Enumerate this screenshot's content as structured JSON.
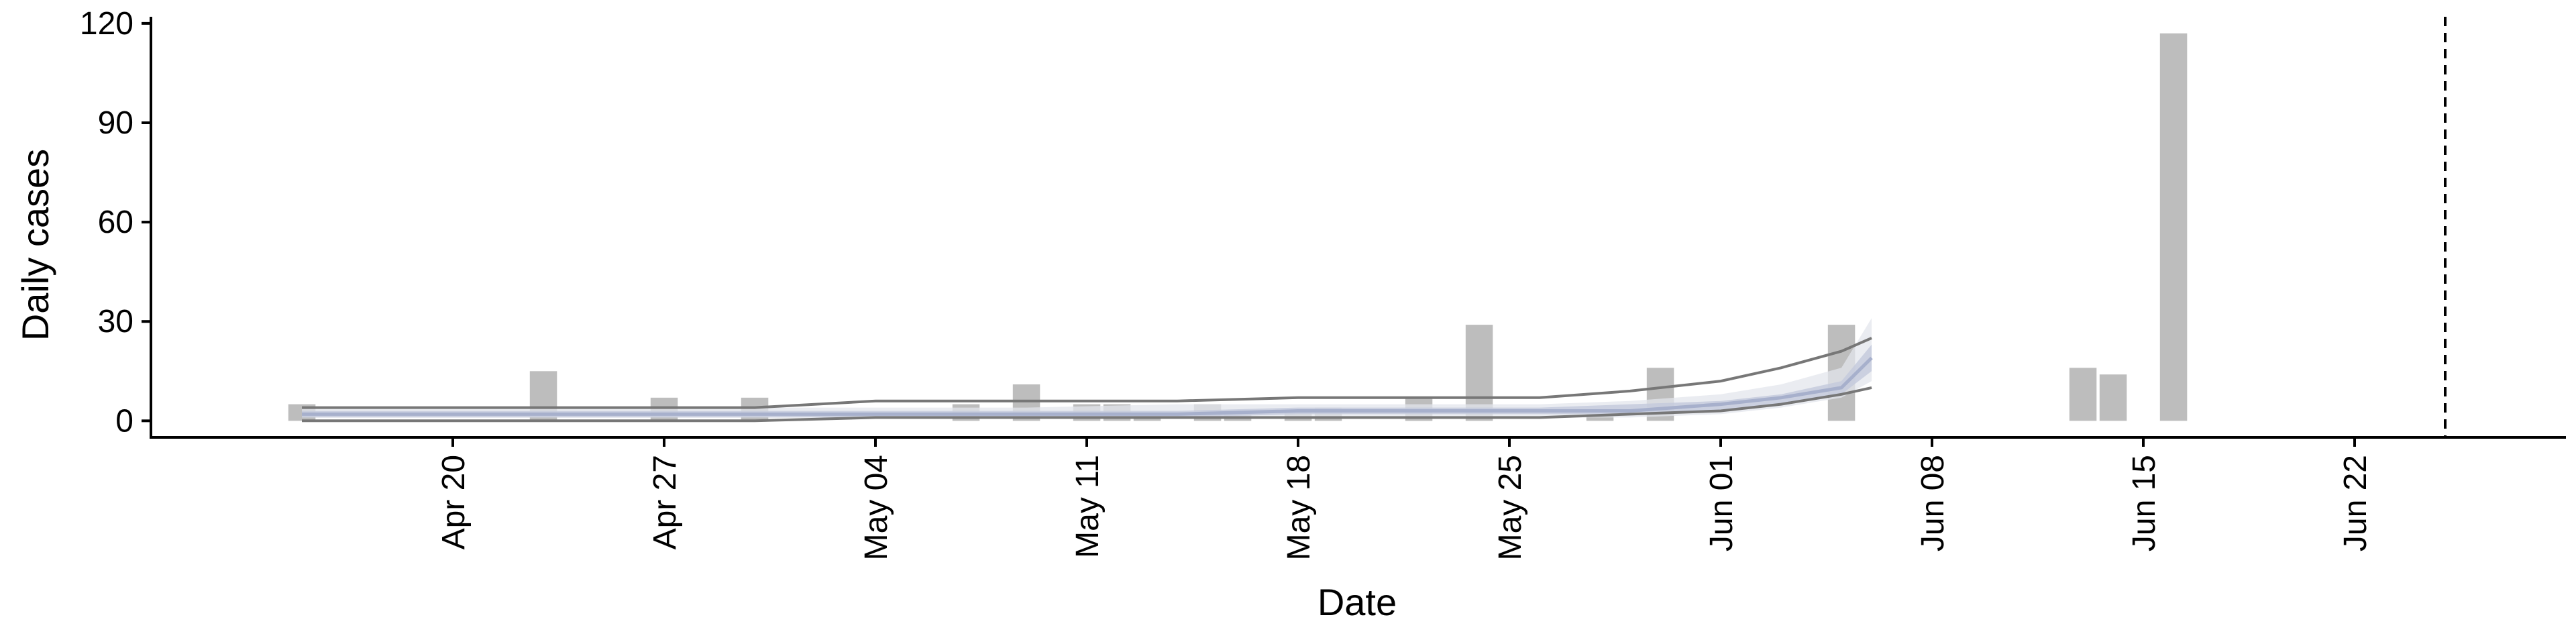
{
  "chart_data": {
    "type": "bar",
    "title": "",
    "xlabel": "Date",
    "ylabel": "Daily cases",
    "ylim": [
      -5,
      122
    ],
    "yticks": [
      0,
      30,
      60,
      90,
      120
    ],
    "xlim": [
      "2020-04-10",
      "2020-06-29"
    ],
    "xticks": [
      {
        "date": "2020-04-20",
        "label": "Apr 20"
      },
      {
        "date": "2020-04-27",
        "label": "Apr 27"
      },
      {
        "date": "2020-05-04",
        "label": "May 04"
      },
      {
        "date": "2020-05-11",
        "label": "May 11"
      },
      {
        "date": "2020-05-18",
        "label": "May 18"
      },
      {
        "date": "2020-05-25",
        "label": "May 25"
      },
      {
        "date": "2020-06-01",
        "label": "Jun 01"
      },
      {
        "date": "2020-06-08",
        "label": "Jun 08"
      },
      {
        "date": "2020-06-15",
        "label": "Jun 15"
      },
      {
        "date": "2020-06-22",
        "label": "Jun 22"
      }
    ],
    "bars": [
      {
        "date": "2020-04-15",
        "value": 5
      },
      {
        "date": "2020-04-23",
        "value": 15
      },
      {
        "date": "2020-04-27",
        "value": 7
      },
      {
        "date": "2020-04-30",
        "value": 7
      },
      {
        "date": "2020-05-07",
        "value": 5
      },
      {
        "date": "2020-05-09",
        "value": 11
      },
      {
        "date": "2020-05-11",
        "value": 5
      },
      {
        "date": "2020-05-12",
        "value": 5
      },
      {
        "date": "2020-05-13",
        "value": 2
      },
      {
        "date": "2020-05-15",
        "value": 5
      },
      {
        "date": "2020-05-16",
        "value": 3
      },
      {
        "date": "2020-05-18",
        "value": 3
      },
      {
        "date": "2020-05-19",
        "value": 4
      },
      {
        "date": "2020-05-22",
        "value": 7
      },
      {
        "date": "2020-05-24",
        "value": 29
      },
      {
        "date": "2020-05-28",
        "value": 2
      },
      {
        "date": "2020-05-30",
        "value": 16
      },
      {
        "date": "2020-06-05",
        "value": 29
      },
      {
        "date": "2020-06-13",
        "value": 16
      },
      {
        "date": "2020-06-14",
        "value": 14
      },
      {
        "date": "2020-06-16",
        "value": 117
      }
    ],
    "estimate": {
      "dates": [
        "2020-04-15",
        "2020-04-20",
        "2020-04-25",
        "2020-04-30",
        "2020-05-04",
        "2020-05-09",
        "2020-05-14",
        "2020-05-18",
        "2020-05-22",
        "2020-05-26",
        "2020-05-29",
        "2020-06-01",
        "2020-06-03",
        "2020-06-05",
        "2020-06-06"
      ],
      "upper_outer": [
        4,
        4,
        4,
        4,
        4,
        4,
        5,
        5,
        5,
        5,
        6,
        8,
        11,
        16,
        31
      ],
      "upper_inner": [
        3,
        3,
        3,
        3,
        3,
        3,
        3,
        4,
        4,
        4,
        5,
        6,
        8,
        12,
        23
      ],
      "median": [
        2,
        2,
        2,
        2,
        2,
        2,
        2,
        3,
        3,
        3,
        3,
        5,
        7,
        10,
        19
      ],
      "lower_inner": [
        1,
        1,
        1,
        1,
        1,
        1,
        1,
        2,
        2,
        2,
        2,
        3,
        5,
        8,
        15
      ],
      "lower_outer": [
        1,
        1,
        1,
        1,
        1,
        1,
        1,
        1,
        1,
        1,
        1,
        2,
        4,
        7,
        12
      ],
      "upper_line": [
        4,
        4,
        4,
        4,
        6,
        6,
        6,
        7,
        7,
        7,
        9,
        12,
        16,
        21,
        25
      ],
      "lower_line": [
        0,
        0,
        0,
        0,
        1,
        1,
        1,
        1,
        1,
        1,
        2,
        3,
        5,
        8,
        10
      ]
    },
    "vline_date": "2020-06-25",
    "grid": false,
    "colors": {
      "bars": "#bdbdbd",
      "band_outer": "#e3e5ec",
      "band_inner": "#c3c9dc",
      "median": "#a7b0cc",
      "range_lines": "#777777",
      "axis": "#000000"
    }
  }
}
